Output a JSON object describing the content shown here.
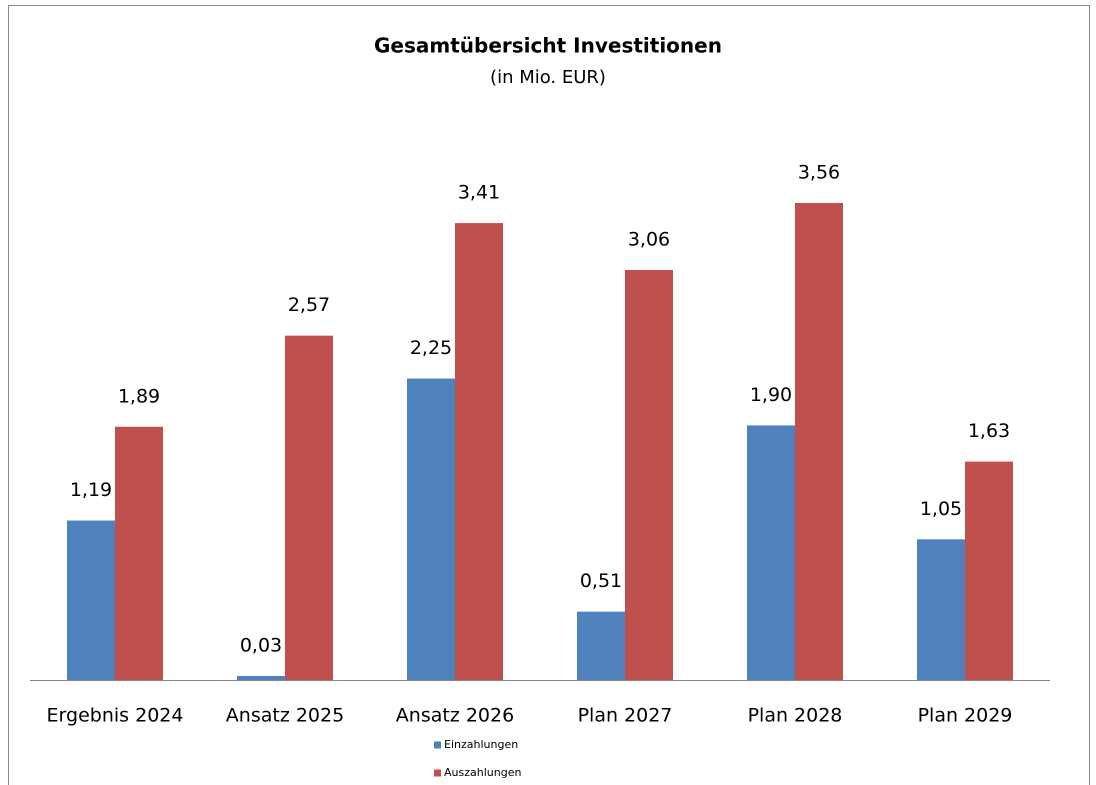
{
  "chart_data": {
    "type": "bar",
    "title": "Gesamtübersicht Investitionen",
    "subtitle": "(in Mio. EUR)",
    "categories": [
      "Ergebnis 2024",
      "Ansatz 2025",
      "Ansatz 2026",
      "Plan 2027",
      "Plan 2028",
      "Plan 2029"
    ],
    "series": [
      {
        "name": "Einzahlungen",
        "color": "#4f81bd",
        "values": [
          1.19,
          0.03,
          2.25,
          0.51,
          1.9,
          1.05
        ],
        "value_labels": [
          "1,19",
          "0,03",
          "2,25",
          "0,51",
          "1,90",
          "1,05"
        ]
      },
      {
        "name": "Auszahlungen",
        "color": "#c0504d",
        "values": [
          1.89,
          2.57,
          3.41,
          3.06,
          3.56,
          1.63
        ],
        "value_labels": [
          "1,89",
          "2,57",
          "3,41",
          "3,06",
          "3,56",
          "1,63"
        ]
      }
    ]
  }
}
